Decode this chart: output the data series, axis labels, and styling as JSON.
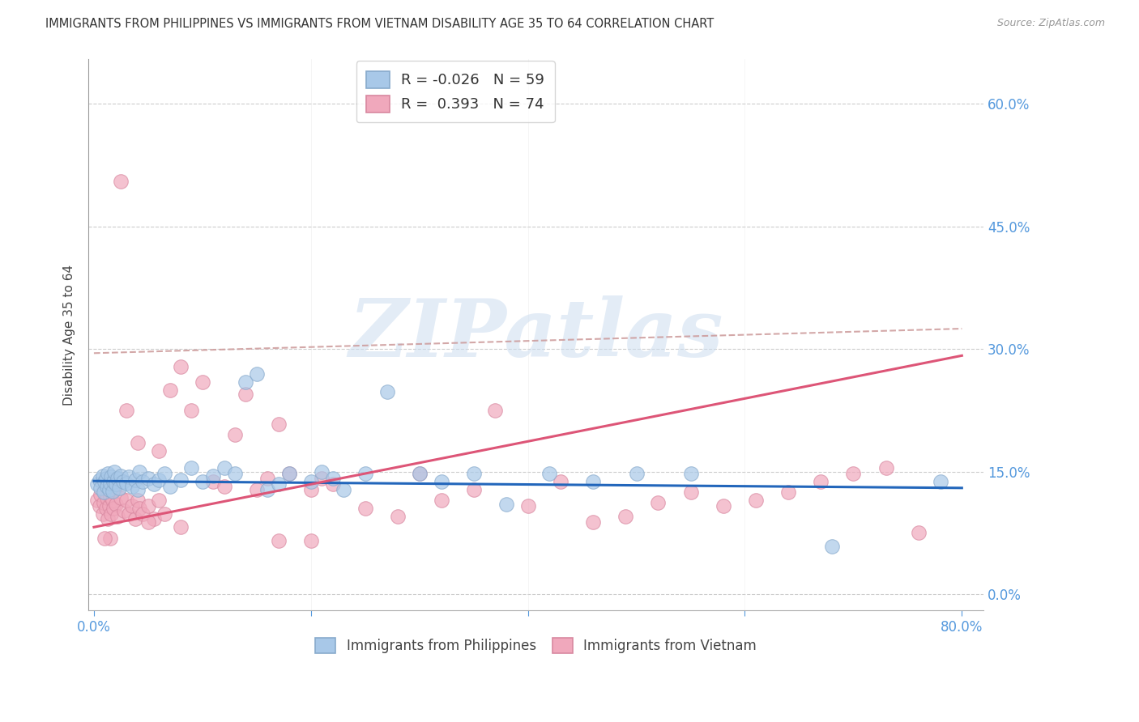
{
  "title": "IMMIGRANTS FROM PHILIPPINES VS IMMIGRANTS FROM VIETNAM DISABILITY AGE 35 TO 64 CORRELATION CHART",
  "source": "Source: ZipAtlas.com",
  "ylabel": "Disability Age 35 to 64",
  "xlim": [
    -0.005,
    0.82
  ],
  "ylim": [
    -0.02,
    0.655
  ],
  "xticks": [
    0.0,
    0.2,
    0.4,
    0.6,
    0.8
  ],
  "xtick_labels": [
    "0.0%",
    "",
    "",
    "",
    "80.0%"
  ],
  "yticks": [
    0.0,
    0.15,
    0.3,
    0.45,
    0.6
  ],
  "ytick_labels_right": [
    "0.0%",
    "15.0%",
    "30.0%",
    "45.0%",
    "60.0%"
  ],
  "philippines_color": "#a8c8e8",
  "philippines_edge": "#88aacc",
  "vietnam_color": "#f0a8bc",
  "vietnam_edge": "#d888a0",
  "trend_philippines_color": "#2266bb",
  "trend_vietnam_color": "#dd5577",
  "dash_line_color": "#cc9999",
  "watermark_text": "ZIPatlas",
  "background_color": "#ffffff",
  "philippines_R": -0.026,
  "philippines_N": 59,
  "vietnam_R": 0.393,
  "vietnam_N": 74,
  "phil_trend": [
    0.0,
    0.1385,
    0.8,
    0.13
  ],
  "viet_trend": [
    0.0,
    0.082,
    0.8,
    0.292
  ],
  "dash_trend": [
    0.0,
    0.295,
    0.8,
    0.325
  ],
  "philippines_scatter_x": [
    0.003,
    0.005,
    0.006,
    0.008,
    0.009,
    0.01,
    0.011,
    0.012,
    0.013,
    0.014,
    0.015,
    0.016,
    0.017,
    0.018,
    0.019,
    0.02,
    0.022,
    0.023,
    0.025,
    0.027,
    0.03,
    0.032,
    0.035,
    0.038,
    0.04,
    0.042,
    0.045,
    0.05,
    0.055,
    0.06,
    0.065,
    0.07,
    0.08,
    0.09,
    0.1,
    0.11,
    0.12,
    0.13,
    0.14,
    0.15,
    0.16,
    0.17,
    0.18,
    0.2,
    0.21,
    0.22,
    0.23,
    0.25,
    0.27,
    0.3,
    0.32,
    0.35,
    0.38,
    0.42,
    0.46,
    0.5,
    0.55,
    0.68,
    0.78
  ],
  "philippines_scatter_y": [
    0.135,
    0.14,
    0.13,
    0.145,
    0.125,
    0.138,
    0.142,
    0.132,
    0.148,
    0.128,
    0.136,
    0.144,
    0.126,
    0.138,
    0.15,
    0.135,
    0.142,
    0.13,
    0.145,
    0.138,
    0.136,
    0.144,
    0.132,
    0.14,
    0.128,
    0.15,
    0.138,
    0.142,
    0.135,
    0.14,
    0.148,
    0.132,
    0.14,
    0.155,
    0.138,
    0.145,
    0.155,
    0.148,
    0.26,
    0.27,
    0.128,
    0.135,
    0.148,
    0.138,
    0.15,
    0.142,
    0.128,
    0.148,
    0.248,
    0.148,
    0.138,
    0.148,
    0.11,
    0.148,
    0.138,
    0.148,
    0.148,
    0.058,
    0.138
  ],
  "vietnam_scatter_x": [
    0.003,
    0.005,
    0.006,
    0.008,
    0.009,
    0.01,
    0.011,
    0.012,
    0.013,
    0.014,
    0.015,
    0.016,
    0.017,
    0.018,
    0.019,
    0.02,
    0.022,
    0.025,
    0.028,
    0.03,
    0.032,
    0.035,
    0.038,
    0.04,
    0.042,
    0.045,
    0.05,
    0.055,
    0.06,
    0.065,
    0.07,
    0.08,
    0.09,
    0.1,
    0.11,
    0.12,
    0.13,
    0.14,
    0.15,
    0.16,
    0.17,
    0.18,
    0.2,
    0.21,
    0.22,
    0.25,
    0.28,
    0.3,
    0.32,
    0.35,
    0.37,
    0.4,
    0.43,
    0.46,
    0.49,
    0.52,
    0.55,
    0.58,
    0.61,
    0.64,
    0.67,
    0.7,
    0.73,
    0.76,
    0.2,
    0.17,
    0.06,
    0.04,
    0.03,
    0.025,
    0.015,
    0.01,
    0.05,
    0.08
  ],
  "vietnam_scatter_y": [
    0.115,
    0.108,
    0.122,
    0.098,
    0.112,
    0.125,
    0.105,
    0.118,
    0.092,
    0.108,
    0.12,
    0.098,
    0.115,
    0.105,
    0.128,
    0.11,
    0.095,
    0.118,
    0.102,
    0.115,
    0.098,
    0.108,
    0.092,
    0.115,
    0.105,
    0.098,
    0.108,
    0.092,
    0.115,
    0.098,
    0.25,
    0.278,
    0.225,
    0.26,
    0.138,
    0.132,
    0.195,
    0.245,
    0.128,
    0.142,
    0.208,
    0.148,
    0.128,
    0.142,
    0.135,
    0.105,
    0.095,
    0.148,
    0.115,
    0.128,
    0.225,
    0.108,
    0.138,
    0.088,
    0.095,
    0.112,
    0.125,
    0.108,
    0.115,
    0.125,
    0.138,
    0.148,
    0.155,
    0.075,
    0.065,
    0.065,
    0.175,
    0.185,
    0.225,
    0.505,
    0.068,
    0.068,
    0.088,
    0.082
  ]
}
